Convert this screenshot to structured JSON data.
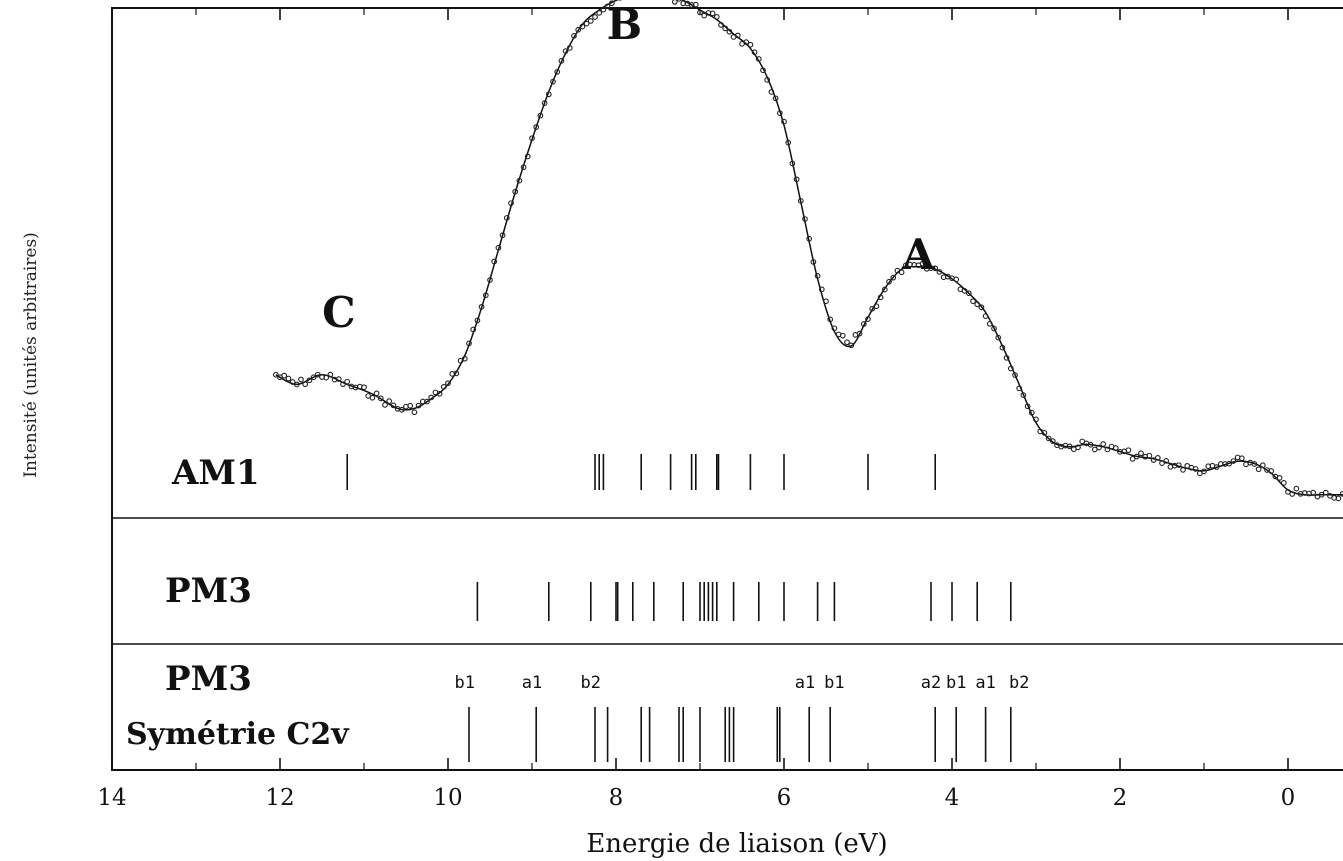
{
  "chart_data": {
    "type": "scatter",
    "xlabel": "Energie de liaison (eV)",
    "ylabel": "Intensité (unités arbitraires)",
    "x_reversed": true,
    "xlim": [
      14,
      -0.8
    ],
    "xticks": [
      "14",
      "12",
      "10",
      "8",
      "6",
      "4",
      "2",
      "0"
    ],
    "xtick_values": [
      14,
      12,
      10,
      8,
      6,
      4,
      2,
      0
    ],
    "peaks": [
      {
        "label": "C",
        "x": 11.3,
        "y": 0.34
      },
      {
        "label": "B",
        "x": 7.9,
        "y": 0.94
      },
      {
        "label": "A",
        "x": 4.4,
        "y": 0.46
      }
    ],
    "experimental": {
      "x": [
        12.05,
        11.8,
        11.5,
        11.2,
        10.9,
        10.6,
        10.4,
        10.2,
        10.0,
        9.8,
        9.6,
        9.4,
        9.2,
        9.0,
        8.8,
        8.6,
        8.4,
        8.2,
        8.0,
        7.8,
        7.6,
        7.4,
        7.2,
        7.0,
        6.8,
        6.6,
        6.4,
        6.2,
        6.0,
        5.8,
        5.6,
        5.4,
        5.2,
        5.0,
        4.8,
        4.6,
        4.4,
        4.2,
        4.0,
        3.8,
        3.6,
        3.4,
        3.2,
        3.0,
        2.8,
        2.6,
        2.4,
        2.2,
        2.0,
        1.8,
        1.6,
        1.4,
        1.2,
        1.0,
        0.8,
        0.6,
        0.4,
        0.2,
        0.0,
        -0.2,
        -0.4,
        -0.8
      ],
      "y": [
        0.24,
        0.22,
        0.24,
        0.22,
        0.2,
        0.17,
        0.17,
        0.19,
        0.22,
        0.28,
        0.38,
        0.5,
        0.62,
        0.73,
        0.83,
        0.91,
        0.97,
        1.0,
        1.02,
        1.03,
        1.04,
        1.03,
        1.02,
        1.0,
        0.98,
        0.95,
        0.92,
        0.86,
        0.76,
        0.6,
        0.44,
        0.33,
        0.3,
        0.36,
        0.42,
        0.46,
        0.465,
        0.46,
        0.44,
        0.41,
        0.37,
        0.3,
        0.22,
        0.14,
        0.1,
        0.09,
        0.095,
        0.09,
        0.08,
        0.07,
        0.065,
        0.055,
        0.045,
        0.04,
        0.05,
        0.06,
        0.055,
        0.035,
        0.0,
        -0.01,
        -0.01,
        -0.01
      ]
    },
    "calculations": [
      {
        "name": "AM1",
        "lines": [
          11.2,
          8.25,
          8.2,
          8.15,
          7.7,
          7.35,
          7.1,
          7.05,
          6.8,
          6.78,
          6.4,
          6.0,
          5.0,
          4.2
        ]
      },
      {
        "name": "PM3",
        "lines": [
          9.65,
          8.8,
          8.3,
          8.0,
          7.98,
          7.8,
          7.55,
          7.2,
          7.0,
          6.95,
          6.9,
          6.85,
          6.8,
          6.6,
          6.3,
          6.0,
          5.6,
          5.4,
          4.25,
          4.0,
          3.7,
          3.3
        ]
      },
      {
        "name": "PM3",
        "subtitle": "Symétrie C2v",
        "lines": [
          9.75,
          8.95,
          8.25,
          8.1,
          7.7,
          7.6,
          7.25,
          7.2,
          7.0,
          6.7,
          6.65,
          6.6,
          6.08,
          6.05,
          5.7,
          5.45,
          4.2,
          3.95,
          3.6,
          3.3
        ],
        "symmetry_labels": [
          {
            "label": "b1",
            "x": 9.8
          },
          {
            "label": "a1",
            "x": 9.0
          },
          {
            "label": "b2",
            "x": 8.3
          },
          {
            "label": "a1",
            "x": 5.75
          },
          {
            "label": "b1",
            "x": 5.4
          },
          {
            "label": "a2",
            "x": 4.25
          },
          {
            "label": "b1",
            "x": 3.95
          },
          {
            "label": "a1",
            "x": 3.6
          },
          {
            "label": "b2",
            "x": 3.2
          }
        ]
      }
    ]
  }
}
